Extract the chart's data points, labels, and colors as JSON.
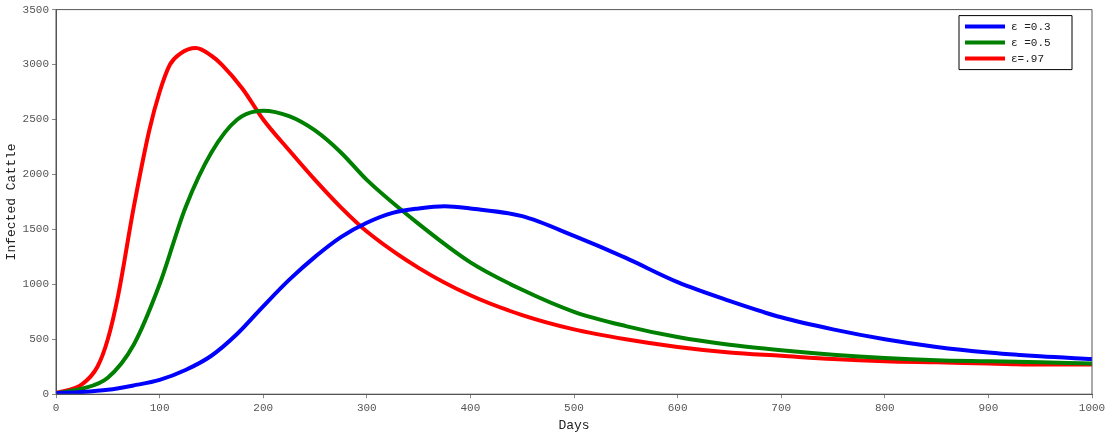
{
  "chart_data": {
    "type": "line",
    "xlabel": "Days",
    "ylabel": "Infected Cattle",
    "xlim": [
      0,
      1000
    ],
    "xticks": [
      0,
      100,
      200,
      300,
      400,
      500,
      600,
      700,
      800,
      900,
      1000
    ],
    "ylim": [
      0,
      3500
    ],
    "yticks": [
      0,
      500,
      1000,
      1500,
      2000,
      2500,
      3000,
      3500
    ],
    "grid": false,
    "legend": "top right",
    "marker": "none",
    "line_style": "solid",
    "series": [
      {
        "name": "ε =0.3",
        "color": "#0000ff",
        "x": [
          0,
          25,
          50,
          75,
          100,
          125,
          150,
          175,
          200,
          225,
          250,
          275,
          300,
          325,
          350,
          375,
          400,
          450,
          500,
          550,
          600,
          650,
          700,
          750,
          800,
          850,
          900,
          950,
          1000
        ],
        "values": [
          10,
          20,
          40,
          80,
          130,
          220,
          350,
          550,
          800,
          1040,
          1250,
          1430,
          1560,
          1650,
          1690,
          1710,
          1690,
          1620,
          1440,
          1240,
          1020,
          850,
          700,
          590,
          500,
          430,
          380,
          345,
          320
        ]
      },
      {
        "name": "ε =0.5",
        "color": "#008000",
        "x": [
          0,
          25,
          50,
          75,
          100,
          125,
          150,
          175,
          200,
          225,
          250,
          275,
          300,
          350,
          400,
          450,
          500,
          550,
          600,
          650,
          700,
          750,
          800,
          850,
          900,
          950,
          1000
        ],
        "values": [
          10,
          50,
          150,
          450,
          1000,
          1700,
          2200,
          2500,
          2580,
          2530,
          2400,
          2200,
          1950,
          1550,
          1200,
          950,
          750,
          620,
          520,
          450,
          400,
          360,
          330,
          310,
          300,
          290,
          280
        ]
      },
      {
        "name": "ε=.97",
        "color": "#ff0000",
        "x": [
          0,
          25,
          40,
          50,
          60,
          75,
          90,
          100,
          110,
          120,
          135,
          150,
          160,
          180,
          200,
          225,
          250,
          275,
          300,
          350,
          400,
          450,
          500,
          550,
          600,
          650,
          700,
          750,
          800,
          850,
          900,
          950,
          1000
        ],
        "values": [
          10,
          90,
          250,
          500,
          900,
          1700,
          2400,
          2750,
          3000,
          3100,
          3150,
          3080,
          3000,
          2780,
          2500,
          2220,
          1950,
          1700,
          1480,
          1150,
          900,
          720,
          590,
          500,
          430,
          380,
          350,
          320,
          300,
          290,
          280,
          270,
          270
        ]
      }
    ]
  }
}
